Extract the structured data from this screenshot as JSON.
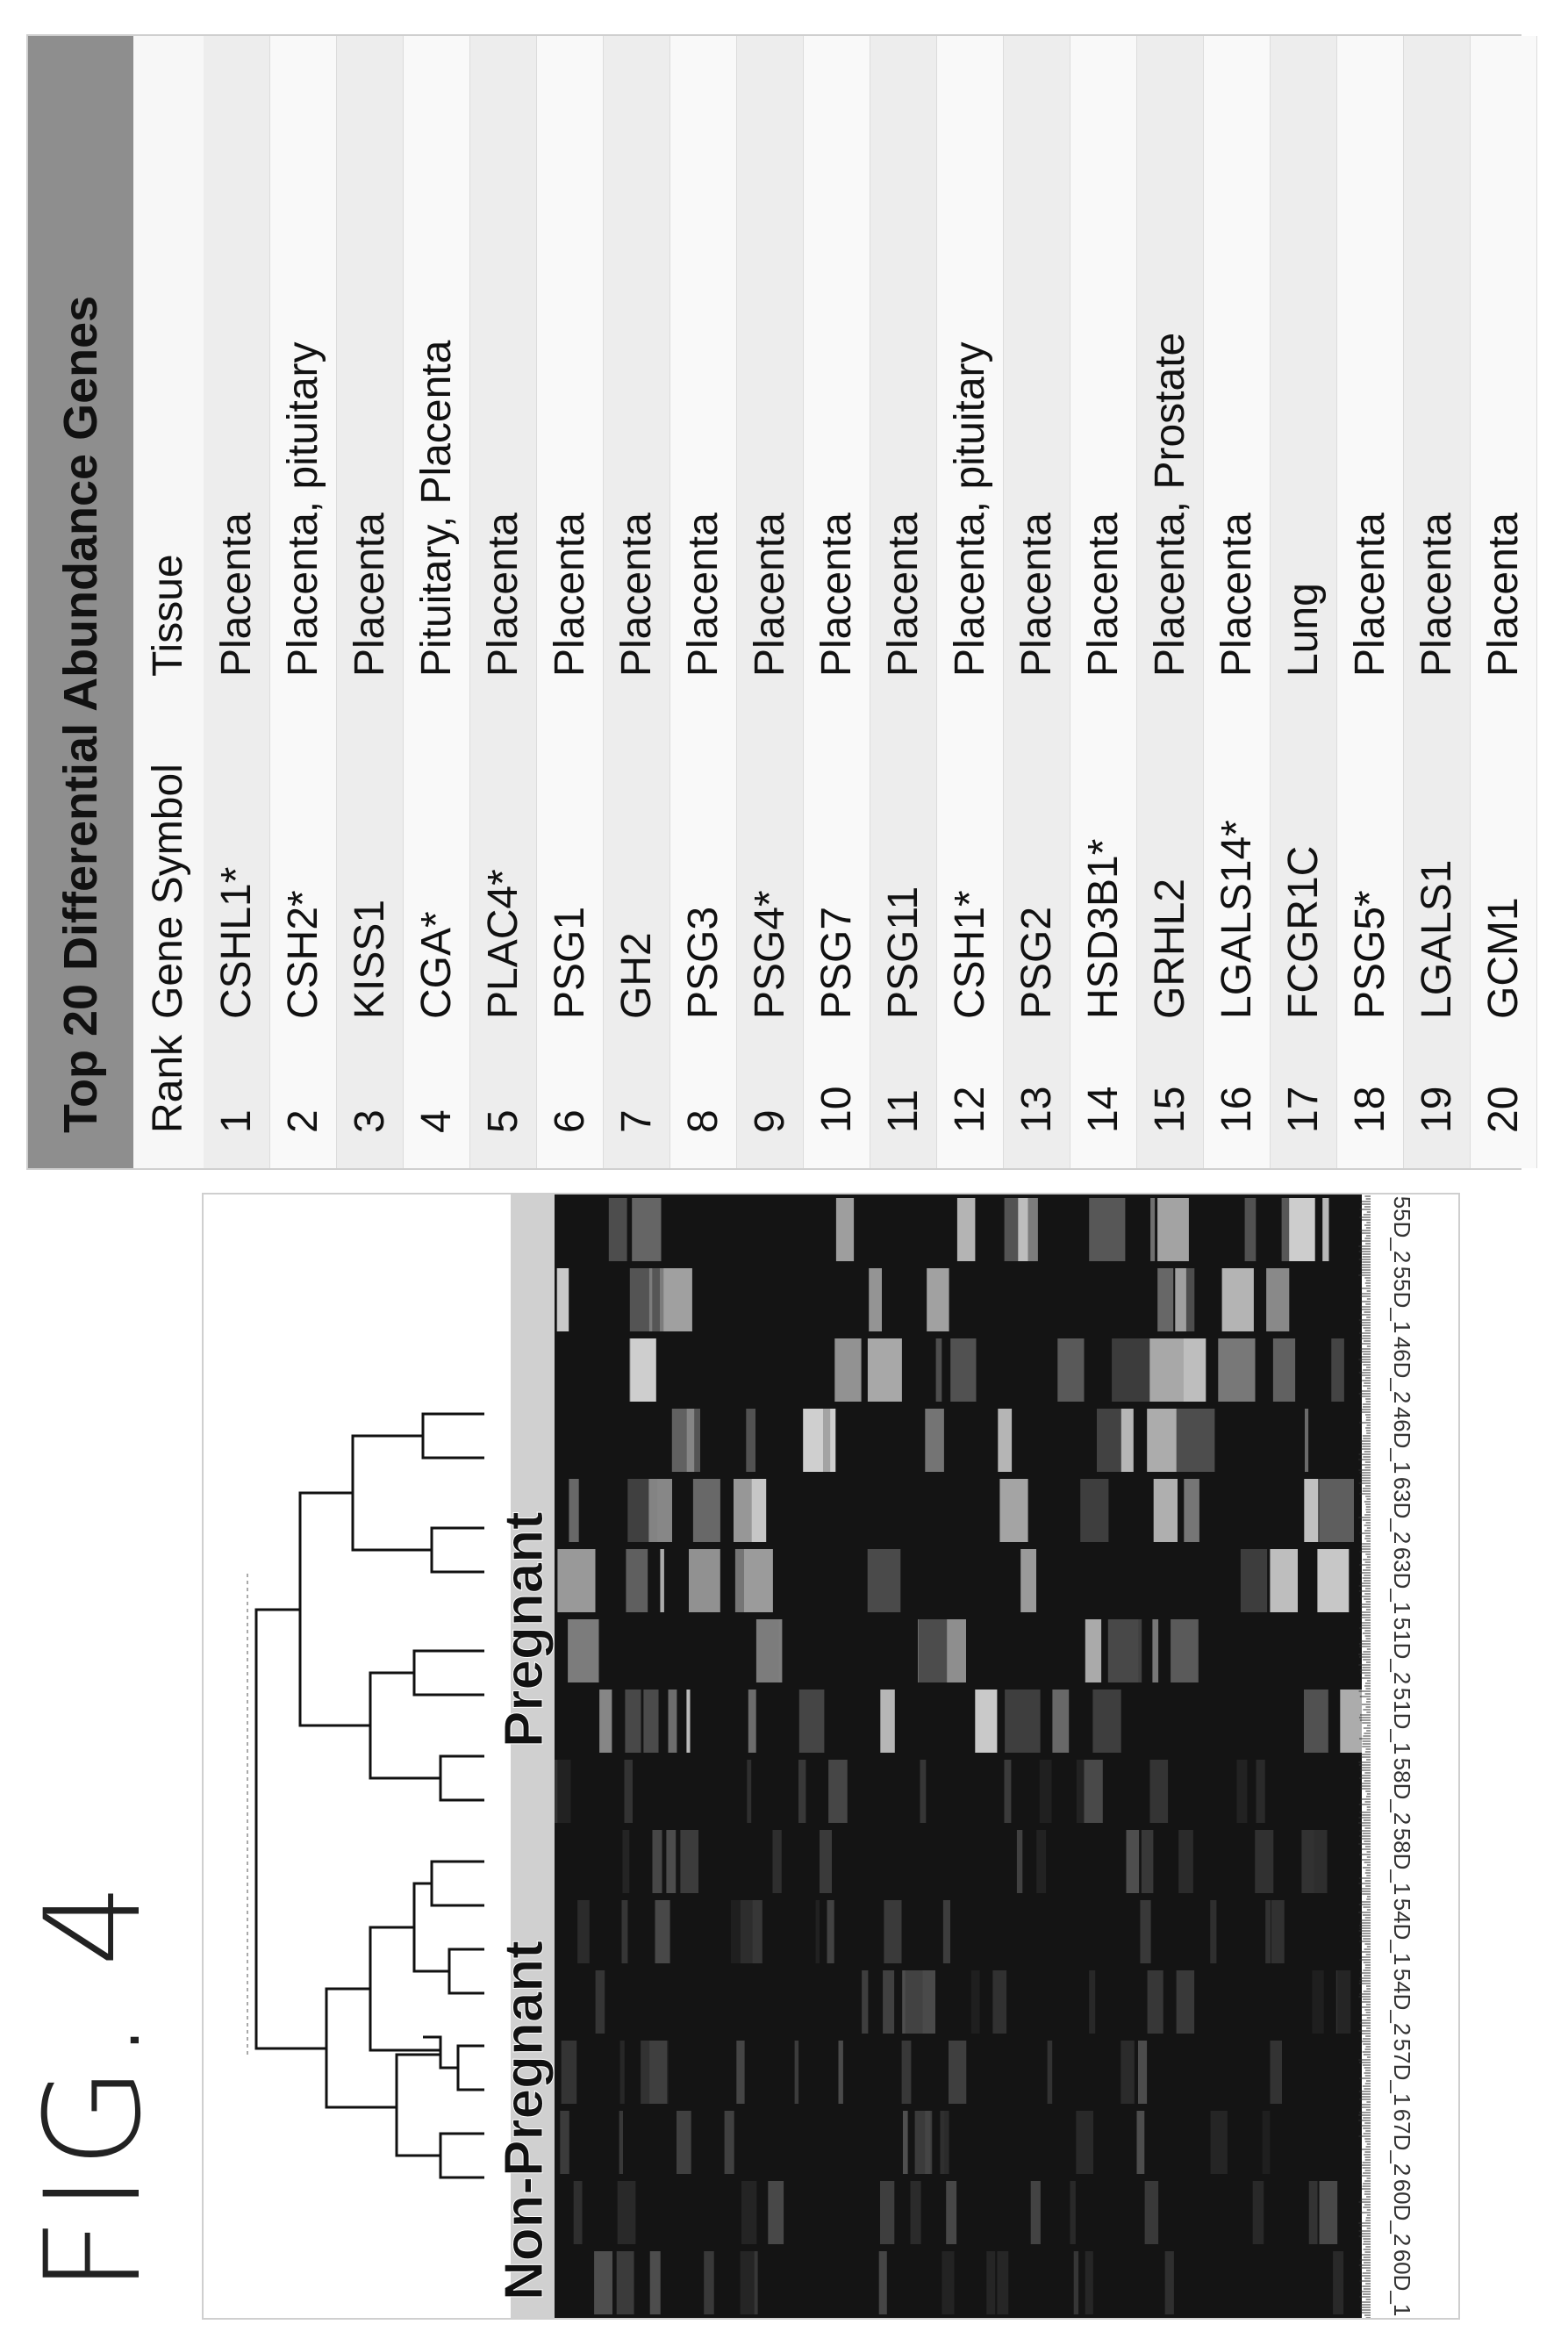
{
  "figure_label": "FIG. 4",
  "table": {
    "title": "Top 20 Differential Abundance Genes",
    "headers": {
      "rank": "Rank",
      "symbol": "Gene Symbol",
      "tissue": "Tissue"
    },
    "rows": [
      {
        "rank": "1",
        "symbol": "CSHL1*",
        "tissue": "Placenta"
      },
      {
        "rank": "2",
        "symbol": "CSH2*",
        "tissue": "Placenta, pituitary"
      },
      {
        "rank": "3",
        "symbol": "KISS1",
        "tissue": "Placenta"
      },
      {
        "rank": "4",
        "symbol": "CGA*",
        "tissue": "Pituitary, Placenta"
      },
      {
        "rank": "5",
        "symbol": "PLAC4*",
        "tissue": "Placenta"
      },
      {
        "rank": "6",
        "symbol": "PSG1",
        "tissue": "Placenta"
      },
      {
        "rank": "7",
        "symbol": "GH2",
        "tissue": "Placenta"
      },
      {
        "rank": "8",
        "symbol": "PSG3",
        "tissue": "Placenta"
      },
      {
        "rank": "9",
        "symbol": "PSG4*",
        "tissue": "Placenta"
      },
      {
        "rank": "10",
        "symbol": "PSG7",
        "tissue": "Placenta"
      },
      {
        "rank": "11",
        "symbol": "PSG11",
        "tissue": "Placenta"
      },
      {
        "rank": "12",
        "symbol": "CSH1*",
        "tissue": "Placenta, pituitary"
      },
      {
        "rank": "13",
        "symbol": "PSG2",
        "tissue": "Placenta"
      },
      {
        "rank": "14",
        "symbol": "HSD3B1*",
        "tissue": "Placenta"
      },
      {
        "rank": "15",
        "symbol": "GRHL2",
        "tissue": "Placenta, Prostate"
      },
      {
        "rank": "16",
        "symbol": "LGALS14*",
        "tissue": "Placenta"
      },
      {
        "rank": "17",
        "symbol": "FCGR1C",
        "tissue": "Lung"
      },
      {
        "rank": "18",
        "symbol": "PSG5*",
        "tissue": "Placenta"
      },
      {
        "rank": "19",
        "symbol": "LGALS1",
        "tissue": "Placenta"
      },
      {
        "rank": "20",
        "symbol": "GCM1",
        "tissue": "Placenta"
      }
    ]
  },
  "heatmap": {
    "group_labels": {
      "non_pregnant": "Non-Pregnant",
      "pregnant": "Pregnant"
    },
    "samples": [
      "60D_1",
      "60D_2",
      "67D_2",
      "57D_1",
      "54D_2",
      "54D_1",
      "58D_1",
      "58D_2",
      "51D_1",
      "51D_2",
      "63D_1",
      "63D_2",
      "46D_1",
      "46D_2",
      "55D_1",
      "55D_2"
    ],
    "colors": {
      "background": "#141414",
      "group_bar": "#d0d0d0"
    }
  }
}
